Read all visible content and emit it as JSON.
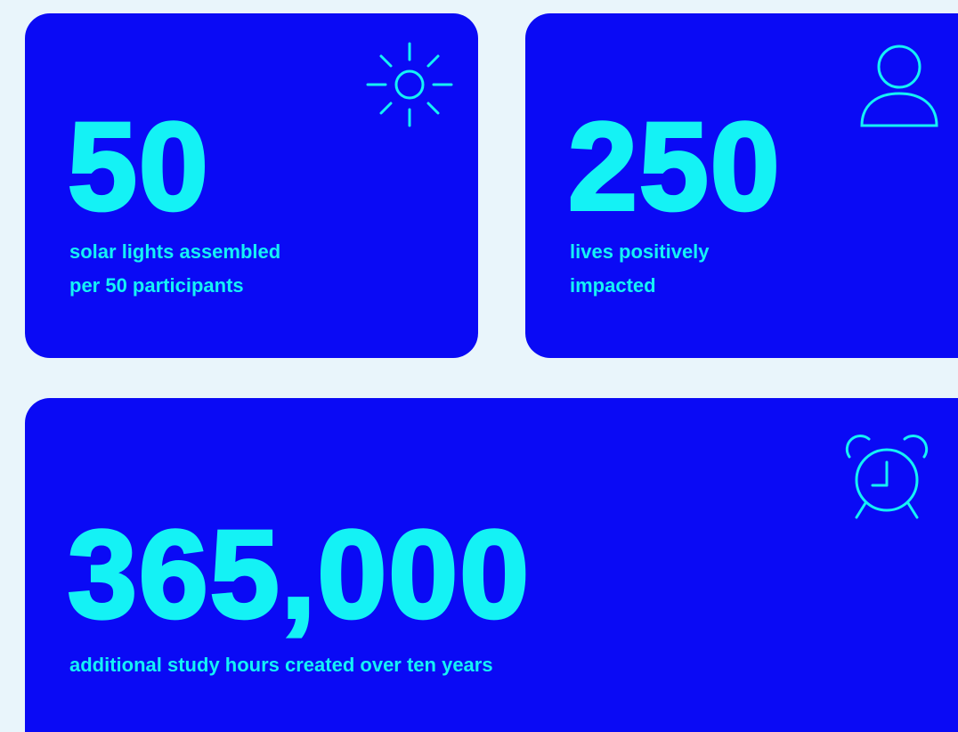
{
  "cards": [
    {
      "number": "50",
      "label_lines": [
        "solar lights assembled",
        "per 50 participants"
      ]
    },
    {
      "number": "250",
      "label_lines": [
        "lives positively",
        "impacted"
      ]
    },
    {
      "number": "365,000",
      "label_lines": [
        "additional study hours created over ten years"
      ]
    }
  ]
}
